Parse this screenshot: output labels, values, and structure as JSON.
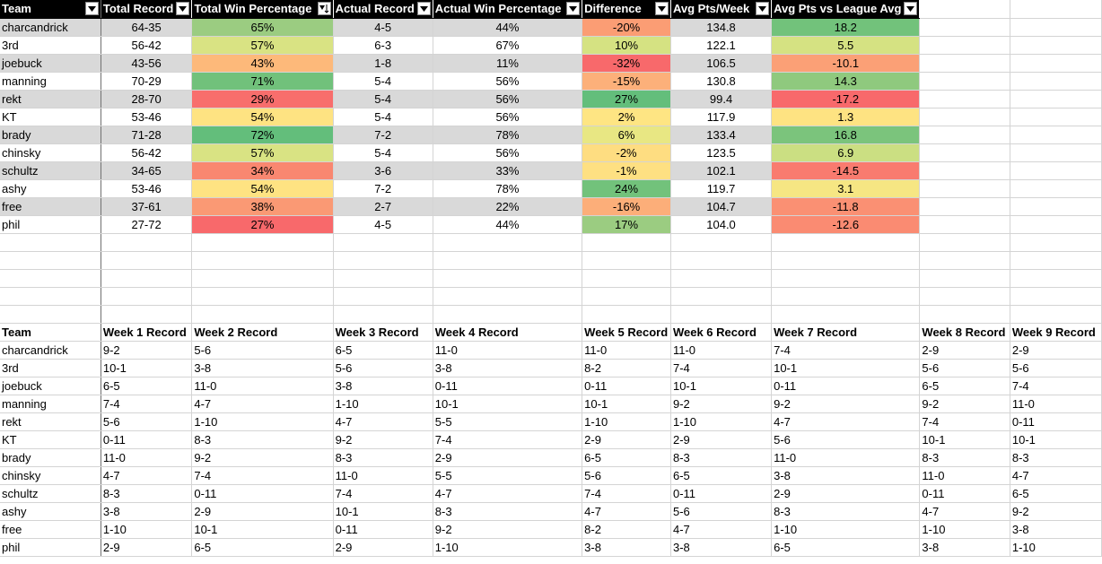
{
  "summary": {
    "headers": [
      "Team",
      "Total Record",
      "Total Win Percentage",
      "Actual Record",
      "Actual Win Percentage",
      "Difference",
      "Avg Pts/Week",
      "Avg Pts vs League Avg"
    ],
    "rows": [
      {
        "team": "charcandrick",
        "total_record": "64-35",
        "total_win_pct": "65%",
        "actual_record": "4-5",
        "actual_win_pct": "44%",
        "difference": "-20%",
        "avg_pts": "134.8",
        "avg_vs_league": "18.2",
        "c_total_win": "#9bcc81",
        "c_diff": "#fb9d74",
        "c_league": "#72c27b"
      },
      {
        "team": "3rd",
        "total_record": "56-42",
        "total_win_pct": "57%",
        "actual_record": "6-3",
        "actual_win_pct": "67%",
        "difference": "10%",
        "avg_pts": "122.1",
        "avg_vs_league": "5.5",
        "c_total_win": "#d9e383",
        "c_diff": "#d5e282",
        "c_league": "#d5e282"
      },
      {
        "team": "joebuck",
        "total_record": "43-56",
        "total_win_pct": "43%",
        "actual_record": "1-8",
        "actual_win_pct": "11%",
        "difference": "-32%",
        "avg_pts": "106.5",
        "avg_vs_league": "-10.1",
        "c_total_win": "#fdb97a",
        "c_diff": "#f8696b",
        "c_league": "#fba076"
      },
      {
        "team": "manning",
        "total_record": "70-29",
        "total_win_pct": "71%",
        "actual_record": "5-4",
        "actual_win_pct": "56%",
        "difference": "-15%",
        "avg_pts": "130.8",
        "avg_vs_league": "14.3",
        "c_total_win": "#71c17b",
        "c_diff": "#fcb07a",
        "c_league": "#8fc97e"
      },
      {
        "team": "rekt",
        "total_record": "28-70",
        "total_win_pct": "29%",
        "actual_record": "5-4",
        "actual_win_pct": "56%",
        "difference": "27%",
        "avg_pts": "99.4",
        "avg_vs_league": "-17.2",
        "c_total_win": "#f86e6c",
        "c_diff": "#63be7b",
        "c_league": "#f8696b"
      },
      {
        "team": "KT",
        "total_record": "53-46",
        "total_win_pct": "54%",
        "actual_record": "5-4",
        "actual_win_pct": "56%",
        "difference": "2%",
        "avg_pts": "117.9",
        "avg_vs_league": "1.3",
        "c_total_win": "#fee382",
        "c_diff": "#fee583",
        "c_league": "#fee382"
      },
      {
        "team": "brady",
        "total_record": "71-28",
        "total_win_pct": "72%",
        "actual_record": "7-2",
        "actual_win_pct": "78%",
        "difference": "6%",
        "avg_pts": "133.4",
        "avg_vs_league": "16.8",
        "c_total_win": "#63be7b",
        "c_diff": "#e8e783",
        "c_league": "#7bc47c"
      },
      {
        "team": "chinsky",
        "total_record": "56-42",
        "total_win_pct": "57%",
        "actual_record": "5-4",
        "actual_win_pct": "56%",
        "difference": "-2%",
        "avg_pts": "123.5",
        "avg_vs_league": "6.9",
        "c_total_win": "#d9e383",
        "c_diff": "#fedd81",
        "c_league": "#cbdf82"
      },
      {
        "team": "schultz",
        "total_record": "34-65",
        "total_win_pct": "34%",
        "actual_record": "3-6",
        "actual_win_pct": "33%",
        "difference": "-1%",
        "avg_pts": "102.1",
        "avg_vs_league": "-14.5",
        "c_total_win": "#f98770",
        "c_diff": "#fee082",
        "c_league": "#f97b6f"
      },
      {
        "team": "ashy",
        "total_record": "53-46",
        "total_win_pct": "54%",
        "actual_record": "7-2",
        "actual_win_pct": "78%",
        "difference": "24%",
        "avg_pts": "119.7",
        "avg_vs_league": "3.1",
        "c_total_win": "#fee382",
        "c_diff": "#72c27b",
        "c_league": "#f6e683"
      },
      {
        "team": "free",
        "total_record": "37-61",
        "total_win_pct": "38%",
        "actual_record": "2-7",
        "actual_win_pct": "22%",
        "difference": "-16%",
        "avg_pts": "104.7",
        "avg_vs_league": "-11.8",
        "c_total_win": "#fa9974",
        "c_diff": "#fcae79",
        "c_league": "#fa9073"
      },
      {
        "team": "phil",
        "total_record": "27-72",
        "total_win_pct": "27%",
        "actual_record": "4-5",
        "actual_win_pct": "44%",
        "difference": "17%",
        "avg_pts": "104.0",
        "avg_vs_league": "-12.6",
        "c_total_win": "#f8696b",
        "c_diff": "#9bcc81",
        "c_league": "#fa8b72"
      }
    ]
  },
  "weekly": {
    "headers": [
      "Team",
      "Week 1 Record",
      "Week 2 Record",
      "Week 3 Record",
      "Week 4 Record",
      "Week 5 Record",
      "Week 6 Record",
      "Week 7 Record",
      "Week 8 Record",
      "Week 9 Record"
    ],
    "rows": [
      {
        "team": "charcandrick",
        "w": [
          "9-2",
          "5-6",
          "6-5",
          "11-0",
          "11-0",
          "11-0",
          "7-4",
          "2-9",
          "2-9"
        ]
      },
      {
        "team": "3rd",
        "w": [
          "10-1",
          "3-8",
          "5-6",
          "3-8",
          "8-2",
          "7-4",
          "10-1",
          "5-6",
          "5-6"
        ]
      },
      {
        "team": "joebuck",
        "w": [
          "6-5",
          "11-0",
          "3-8",
          "0-11",
          "0-11",
          "10-1",
          "0-11",
          "6-5",
          "7-4"
        ]
      },
      {
        "team": "manning",
        "w": [
          "7-4",
          "4-7",
          "1-10",
          "10-1",
          "10-1",
          "9-2",
          "9-2",
          "9-2",
          "11-0"
        ]
      },
      {
        "team": "rekt",
        "w": [
          "5-6",
          "1-10",
          "4-7",
          "5-5",
          "1-10",
          "1-10",
          "4-7",
          "7-4",
          "0-11"
        ]
      },
      {
        "team": "KT",
        "w": [
          "0-11",
          "8-3",
          "9-2",
          "7-4",
          "2-9",
          "2-9",
          "5-6",
          "10-1",
          "10-1"
        ]
      },
      {
        "team": "brady",
        "w": [
          "11-0",
          "9-2",
          "8-3",
          "2-9",
          "6-5",
          "8-3",
          "11-0",
          "8-3",
          "8-3"
        ]
      },
      {
        "team": "chinsky",
        "w": [
          "4-7",
          "7-4",
          "11-0",
          "5-5",
          "5-6",
          "6-5",
          "3-8",
          "11-0",
          "4-7"
        ]
      },
      {
        "team": "schultz",
        "w": [
          "8-3",
          "0-11",
          "7-4",
          "4-7",
          "7-4",
          "0-11",
          "2-9",
          "0-11",
          "6-5"
        ]
      },
      {
        "team": "ashy",
        "w": [
          "3-8",
          "2-9",
          "10-1",
          "8-3",
          "4-7",
          "5-6",
          "8-3",
          "4-7",
          "9-2"
        ]
      },
      {
        "team": "free",
        "w": [
          "1-10",
          "10-1",
          "0-11",
          "9-2",
          "8-2",
          "4-7",
          "1-10",
          "1-10",
          "3-8"
        ]
      },
      {
        "team": "phil",
        "w": [
          "2-9",
          "6-5",
          "2-9",
          "1-10",
          "3-8",
          "3-8",
          "6-5",
          "3-8",
          "1-10"
        ]
      }
    ]
  }
}
